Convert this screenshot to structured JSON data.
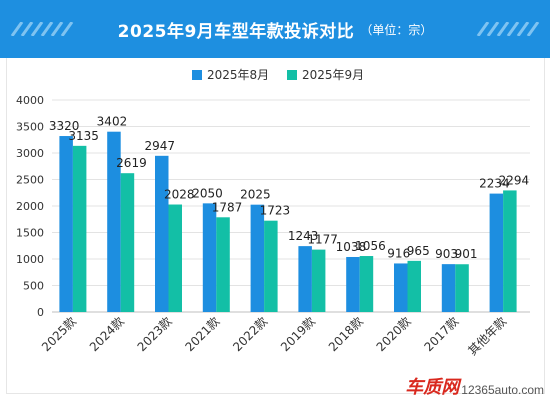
{
  "header": {
    "title": "2025年9月车型年款投诉对比",
    "subtitle": "（单位：宗）",
    "background": "#1e8fe0"
  },
  "watermark": {
    "brand": "车质网",
    "url": "12365auto.com"
  },
  "chart_data": {
    "type": "bar",
    "categories": [
      "2025款",
      "2024款",
      "2023款",
      "2021款",
      "2022款",
      "2019款",
      "2018款",
      "2020款",
      "2017款",
      "其他年款"
    ],
    "series": [
      {
        "name": "2025年8月",
        "color": "#1d8ee0",
        "values": [
          3320,
          3402,
          2947,
          2050,
          2025,
          1243,
          1038,
          916,
          903,
          2234
        ]
      },
      {
        "name": "2025年9月",
        "color": "#13bfa6",
        "values": [
          3135,
          2619,
          2028,
          1787,
          1723,
          1177,
          1056,
          965,
          901,
          2294
        ]
      }
    ],
    "ylim": [
      0,
      4000
    ],
    "yticks": [
      "0",
      "500",
      "1000",
      "1500",
      "2000",
      "2500",
      "3000",
      "3500",
      "4000"
    ],
    "grid": true,
    "legend_position": "top-center"
  }
}
